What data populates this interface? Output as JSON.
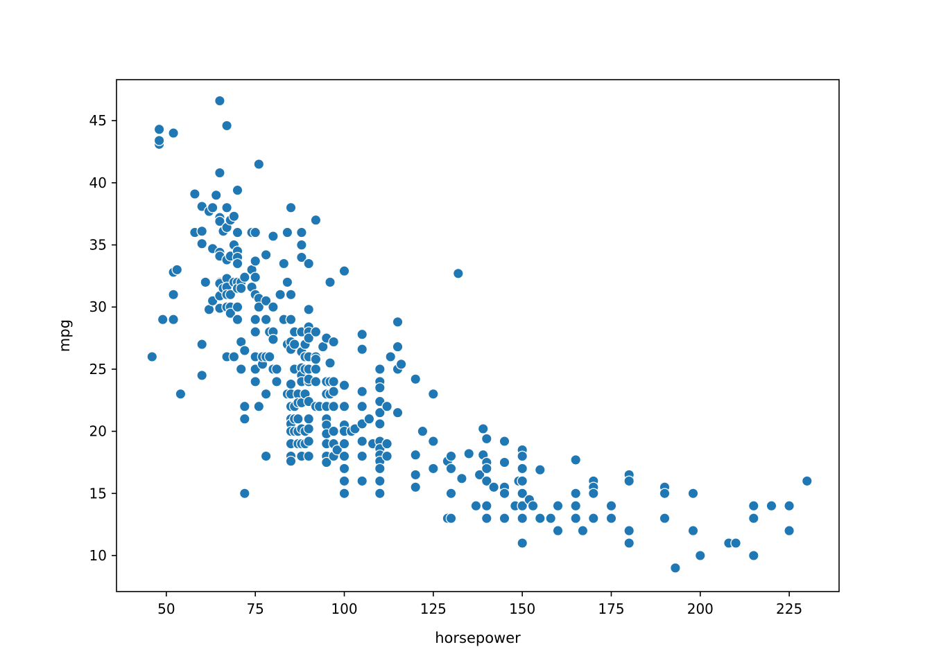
{
  "chart_data": {
    "type": "scatter",
    "title": "",
    "xlabel": "horsepower",
    "ylabel": "mpg",
    "xlim": [
      36,
      239
    ],
    "ylim": [
      7.1,
      48.3
    ],
    "x_ticks": [
      50,
      75,
      100,
      125,
      150,
      175,
      200,
      225
    ],
    "x_tick_labels": [
      "50",
      "75",
      "100",
      "125",
      "150",
      "175",
      "200",
      "225"
    ],
    "y_ticks": [
      10,
      15,
      20,
      25,
      30,
      35,
      40,
      45
    ],
    "y_tick_labels": [
      "10",
      "15",
      "20",
      "25",
      "30",
      "35",
      "40",
      "45"
    ],
    "grid": false,
    "legend": "none",
    "marker_color": "#1f77b4",
    "marker_edge_color": "#ffffff",
    "points": [
      [
        46,
        26
      ],
      [
        48,
        43.1
      ],
      [
        48,
        43.4
      ],
      [
        48,
        44.3
      ],
      [
        49,
        29
      ],
      [
        52,
        44
      ],
      [
        52,
        32.8
      ],
      [
        52,
        31
      ],
      [
        52,
        29
      ],
      [
        53,
        33
      ],
      [
        54,
        23
      ],
      [
        58,
        39.1
      ],
      [
        58,
        36
      ],
      [
        60,
        38.1
      ],
      [
        60,
        36.1
      ],
      [
        60,
        35.1
      ],
      [
        60,
        27
      ],
      [
        60,
        24.5
      ],
      [
        61,
        32
      ],
      [
        62,
        37.7
      ],
      [
        62,
        29.8
      ],
      [
        63,
        38
      ],
      [
        63,
        34.7
      ],
      [
        63,
        30.5
      ],
      [
        64,
        39
      ],
      [
        65,
        46.6
      ],
      [
        65,
        40.8
      ],
      [
        65,
        37.2
      ],
      [
        65,
        36.9
      ],
      [
        65,
        34.4
      ],
      [
        65,
        34.1
      ],
      [
        65,
        32
      ],
      [
        65,
        31.9
      ],
      [
        65,
        30.9
      ],
      [
        65,
        29.9
      ],
      [
        66,
        36.1
      ],
      [
        66,
        31.5
      ],
      [
        67,
        44.6
      ],
      [
        67,
        38
      ],
      [
        67,
        36.4
      ],
      [
        67,
        33.8
      ],
      [
        67,
        32.3
      ],
      [
        67,
        31.6
      ],
      [
        67,
        31
      ],
      [
        67,
        30
      ],
      [
        67,
        26
      ],
      [
        68,
        37
      ],
      [
        68,
        34.1
      ],
      [
        68,
        31
      ],
      [
        68,
        30
      ],
      [
        68,
        29.5
      ],
      [
        69,
        37.3
      ],
      [
        69,
        35
      ],
      [
        69,
        32
      ],
      [
        69,
        26
      ],
      [
        70,
        39.4
      ],
      [
        70,
        36
      ],
      [
        70,
        34.5
      ],
      [
        70,
        34
      ],
      [
        70,
        33.5
      ],
      [
        70,
        32
      ],
      [
        70,
        31.5
      ],
      [
        70,
        30
      ],
      [
        70,
        29
      ],
      [
        71,
        32
      ],
      [
        71,
        31.5
      ],
      [
        71,
        27.2
      ],
      [
        71,
        25
      ],
      [
        72,
        32.4
      ],
      [
        72,
        26.5
      ],
      [
        72,
        22
      ],
      [
        72,
        21
      ],
      [
        72,
        15
      ],
      [
        74,
        36
      ],
      [
        74,
        33
      ],
      [
        74,
        31.6
      ],
      [
        75,
        36
      ],
      [
        75,
        33.7
      ],
      [
        75,
        32.4
      ],
      [
        75,
        31
      ],
      [
        75,
        29
      ],
      [
        75,
        28
      ],
      [
        75,
        26
      ],
      [
        75,
        25
      ],
      [
        75,
        24
      ],
      [
        76,
        41.5
      ],
      [
        76,
        30.7
      ],
      [
        76,
        30
      ],
      [
        76,
        22
      ],
      [
        77,
        25.4
      ],
      [
        77,
        26
      ],
      [
        78,
        34.2
      ],
      [
        78,
        30.5
      ],
      [
        78,
        29
      ],
      [
        78,
        26
      ],
      [
        78,
        23
      ],
      [
        78,
        18
      ],
      [
        79,
        28
      ],
      [
        79,
        26
      ],
      [
        80,
        35.7
      ],
      [
        80,
        30
      ],
      [
        80,
        28
      ],
      [
        80,
        27.4
      ],
      [
        80,
        25
      ],
      [
        81,
        25
      ],
      [
        81,
        24
      ],
      [
        82,
        31
      ],
      [
        83,
        33.5
      ],
      [
        83,
        29
      ],
      [
        84,
        36
      ],
      [
        84,
        32
      ],
      [
        84,
        27
      ],
      [
        84,
        23
      ],
      [
        85,
        38
      ],
      [
        85,
        31
      ],
      [
        85,
        29
      ],
      [
        85,
        27.2
      ],
      [
        85,
        26.6
      ],
      [
        85,
        23.8
      ],
      [
        85,
        23
      ],
      [
        85,
        22
      ],
      [
        85,
        21
      ],
      [
        85,
        20.6
      ],
      [
        85,
        20
      ],
      [
        85,
        19
      ],
      [
        85,
        18
      ],
      [
        85,
        17.6
      ],
      [
        86,
        28
      ],
      [
        86,
        27
      ],
      [
        86,
        25
      ],
      [
        86,
        22
      ],
      [
        86,
        21
      ],
      [
        86,
        20
      ],
      [
        87,
        23
      ],
      [
        87,
        22.3
      ],
      [
        87,
        21
      ],
      [
        87,
        20
      ],
      [
        87,
        19
      ],
      [
        88,
        36
      ],
      [
        88,
        35
      ],
      [
        88,
        34
      ],
      [
        88,
        28
      ],
      [
        88,
        26.4
      ],
      [
        88,
        25.1
      ],
      [
        88,
        24.5
      ],
      [
        88,
        24
      ],
      [
        88,
        22.3
      ],
      [
        88,
        20.2
      ],
      [
        88,
        19
      ],
      [
        88,
        18
      ],
      [
        89,
        27
      ],
      [
        89,
        26
      ],
      [
        89,
        25
      ],
      [
        89,
        23
      ],
      [
        89,
        20
      ],
      [
        89,
        19
      ],
      [
        90,
        33.5
      ],
      [
        90,
        29.8
      ],
      [
        90,
        28.4
      ],
      [
        90,
        28
      ],
      [
        90,
        27.5
      ],
      [
        90,
        26
      ],
      [
        90,
        25
      ],
      [
        90,
        24
      ],
      [
        90,
        24.2
      ],
      [
        90,
        22.4
      ],
      [
        90,
        21
      ],
      [
        90,
        20.2
      ],
      [
        90,
        19.2
      ],
      [
        90,
        18
      ],
      [
        92,
        37
      ],
      [
        92,
        28
      ],
      [
        92,
        26
      ],
      [
        92,
        25.8
      ],
      [
        92,
        25
      ],
      [
        92,
        24
      ],
      [
        92,
        22
      ],
      [
        93,
        22
      ],
      [
        94,
        26.8
      ],
      [
        95,
        27.5
      ],
      [
        95,
        24
      ],
      [
        95,
        23
      ],
      [
        95,
        22
      ],
      [
        95,
        21
      ],
      [
        95,
        20.5
      ],
      [
        95,
        19.8
      ],
      [
        95,
        19
      ],
      [
        95,
        18
      ],
      [
        95,
        17.5
      ],
      [
        96,
        32
      ],
      [
        96,
        25.5
      ],
      [
        96,
        24
      ],
      [
        96,
        23
      ],
      [
        97,
        27.2
      ],
      [
        97,
        24
      ],
      [
        97,
        23.2
      ],
      [
        97,
        22
      ],
      [
        97,
        20
      ],
      [
        97,
        19
      ],
      [
        97,
        18
      ],
      [
        98,
        18.5
      ],
      [
        100,
        32.9
      ],
      [
        100,
        23.7
      ],
      [
        100,
        22
      ],
      [
        100,
        20.5
      ],
      [
        100,
        20
      ],
      [
        100,
        19
      ],
      [
        100,
        18
      ],
      [
        100,
        17
      ],
      [
        100,
        16
      ],
      [
        100,
        15
      ],
      [
        102,
        20
      ],
      [
        103,
        20.2
      ],
      [
        105,
        27.8
      ],
      [
        105,
        26.6
      ],
      [
        105,
        23.2
      ],
      [
        105,
        22
      ],
      [
        105,
        20.6
      ],
      [
        105,
        19.2
      ],
      [
        105,
        18
      ],
      [
        105,
        16
      ],
      [
        107,
        21
      ],
      [
        108,
        19
      ],
      [
        110,
        25
      ],
      [
        110,
        24
      ],
      [
        110,
        23.5
      ],
      [
        110,
        22.4
      ],
      [
        110,
        21.5
      ],
      [
        110,
        20.6
      ],
      [
        110,
        19.2
      ],
      [
        110,
        18.6
      ],
      [
        110,
        18.1
      ],
      [
        110,
        17.6
      ],
      [
        110,
        17
      ],
      [
        110,
        16
      ],
      [
        110,
        15
      ],
      [
        112,
        22
      ],
      [
        112,
        19
      ],
      [
        112,
        18
      ],
      [
        113,
        26
      ],
      [
        115,
        28.8
      ],
      [
        115,
        26.8
      ],
      [
        115,
        25
      ],
      [
        115,
        21.5
      ],
      [
        116,
        25.4
      ],
      [
        120,
        24.2
      ],
      [
        120,
        18.1
      ],
      [
        120,
        16.5
      ],
      [
        120,
        15.5
      ],
      [
        122,
        20
      ],
      [
        125,
        23
      ],
      [
        125,
        19.2
      ],
      [
        125,
        17
      ],
      [
        129,
        17.6
      ],
      [
        129,
        13
      ],
      [
        130,
        18
      ],
      [
        130,
        17
      ],
      [
        130,
        15
      ],
      [
        130,
        13
      ],
      [
        132,
        32.7
      ],
      [
        133,
        16.2
      ],
      [
        135,
        18.2
      ],
      [
        137,
        14
      ],
      [
        138,
        16.5
      ],
      [
        139,
        20.2
      ],
      [
        139,
        18.1
      ],
      [
        140,
        19.4
      ],
      [
        140,
        17.5
      ],
      [
        140,
        17
      ],
      [
        140,
        16
      ],
      [
        140,
        14
      ],
      [
        140,
        13
      ],
      [
        142,
        15.5
      ],
      [
        145,
        19.2
      ],
      [
        145,
        17.5
      ],
      [
        145,
        15.5
      ],
      [
        145,
        15
      ],
      [
        145,
        13
      ],
      [
        148,
        14
      ],
      [
        149,
        16
      ],
      [
        150,
        18.5
      ],
      [
        150,
        18
      ],
      [
        150,
        17
      ],
      [
        150,
        16
      ],
      [
        150,
        15
      ],
      [
        150,
        14
      ],
      [
        150,
        13
      ],
      [
        150,
        11
      ],
      [
        152,
        14.5
      ],
      [
        153,
        14
      ],
      [
        155,
        16.9
      ],
      [
        155,
        13
      ],
      [
        158,
        13
      ],
      [
        160,
        14
      ],
      [
        160,
        12
      ],
      [
        165,
        17.7
      ],
      [
        165,
        15
      ],
      [
        165,
        14
      ],
      [
        165,
        13
      ],
      [
        167,
        12
      ],
      [
        170,
        16
      ],
      [
        170,
        15.5
      ],
      [
        170,
        15
      ],
      [
        170,
        13
      ],
      [
        175,
        14
      ],
      [
        175,
        13
      ],
      [
        180,
        16.5
      ],
      [
        180,
        16
      ],
      [
        180,
        12
      ],
      [
        180,
        11
      ],
      [
        190,
        15.5
      ],
      [
        190,
        15
      ],
      [
        190,
        13
      ],
      [
        193,
        9
      ],
      [
        198,
        15
      ],
      [
        198,
        12
      ],
      [
        200,
        10
      ],
      [
        208,
        11
      ],
      [
        210,
        11
      ],
      [
        215,
        14
      ],
      [
        215,
        13
      ],
      [
        215,
        10
      ],
      [
        220,
        14
      ],
      [
        225,
        14
      ],
      [
        225,
        12
      ],
      [
        230,
        16
      ]
    ]
  }
}
